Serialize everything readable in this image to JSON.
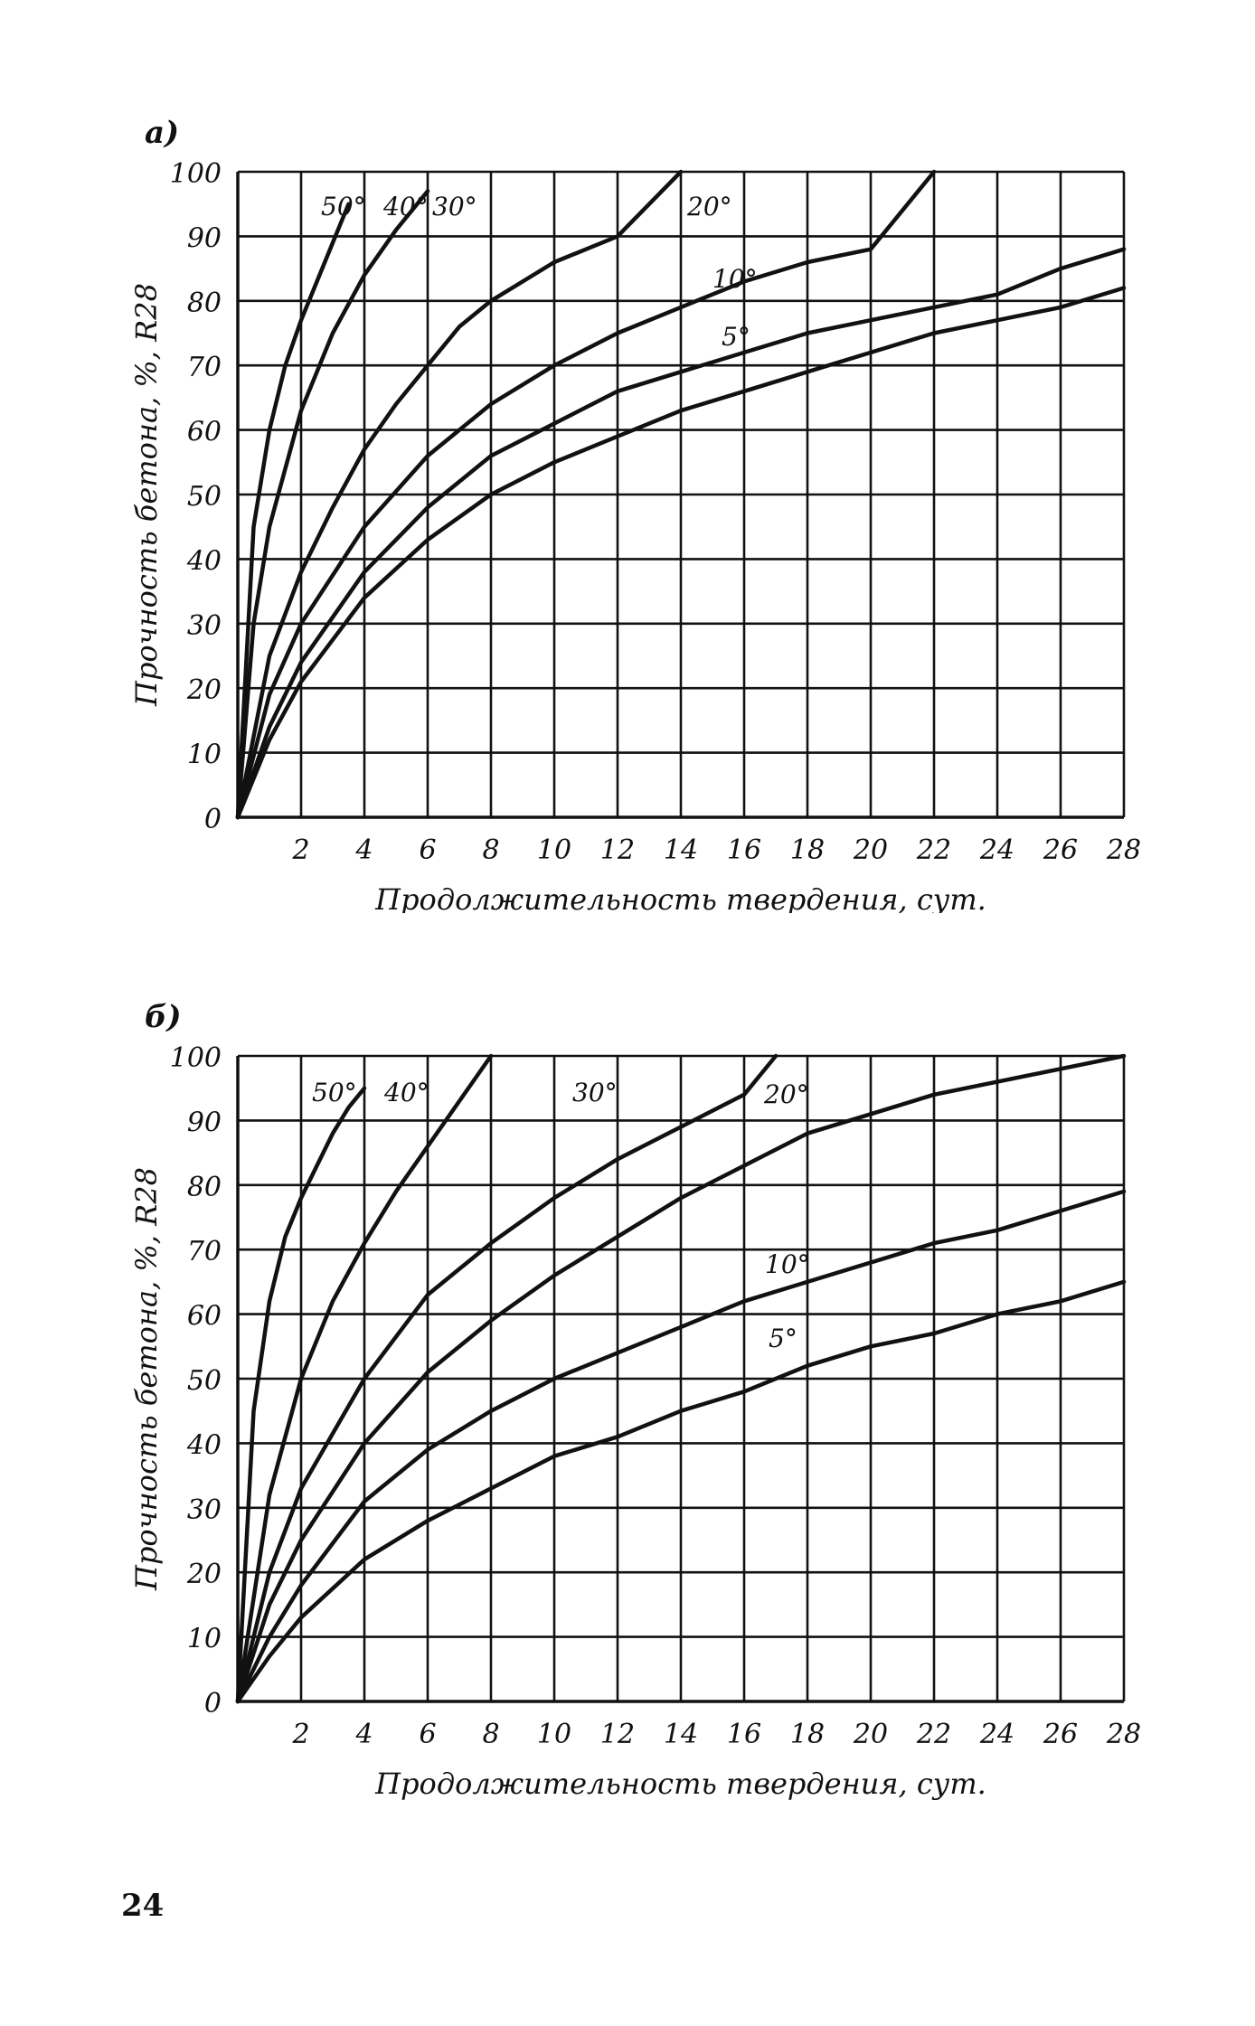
{
  "page": {
    "number": "24"
  },
  "chart_data": [
    {
      "type": "line",
      "panel_label": "а)",
      "xlabel": "Продолжительность твердения, сут.",
      "ylabel": "Прочность бетона, %, R28",
      "xlim": [
        0,
        28
      ],
      "ylim": [
        0,
        100
      ],
      "x_ticks": [
        2,
        4,
        6,
        8,
        10,
        12,
        14,
        16,
        18,
        20,
        22,
        24,
        26,
        28
      ],
      "x_tick_labels": [
        "2",
        "4",
        "6",
        "8",
        "10",
        "12",
        "14",
        "16",
        "18",
        "20",
        "22",
        "24",
        "26",
        "28"
      ],
      "y_ticks": [
        0,
        10,
        20,
        30,
        40,
        50,
        60,
        70,
        80,
        90,
        100
      ],
      "y_tick_labels": [
        "0",
        "10",
        "20",
        "30",
        "40",
        "50",
        "60",
        "70",
        "80",
        "90",
        "100"
      ],
      "grid": true,
      "series": [
        {
          "name": "50°",
          "x": [
            0,
            0.5,
            1,
            1.5,
            2,
            2.5,
            3,
            3.5
          ],
          "values": [
            0,
            45,
            60,
            70,
            77,
            83,
            89,
            95
          ]
        },
        {
          "name": "40°",
          "x": [
            0,
            0.5,
            1,
            2,
            3,
            4,
            5,
            6
          ],
          "values": [
            0,
            30,
            45,
            63,
            75,
            84,
            91,
            97
          ]
        },
        {
          "name": "30°",
          "x": [
            0,
            1,
            2,
            3,
            4,
            5,
            6,
            7,
            8,
            10,
            12,
            14
          ],
          "values": [
            0,
            25,
            38,
            48,
            57,
            64,
            70,
            76,
            80,
            86,
            90,
            100
          ]
        },
        {
          "name": "20°",
          "x": [
            0,
            1,
            2,
            4,
            6,
            8,
            10,
            12,
            14,
            16,
            18,
            20,
            22
          ],
          "values": [
            0,
            19,
            30,
            45,
            56,
            64,
            70,
            75,
            79,
            83,
            86,
            88,
            100
          ]
        },
        {
          "name": "10°",
          "x": [
            0,
            1,
            2,
            4,
            6,
            8,
            10,
            12,
            14,
            16,
            18,
            20,
            22,
            24,
            26,
            28
          ],
          "values": [
            0,
            14,
            24,
            38,
            48,
            56,
            61,
            66,
            69,
            72,
            75,
            77,
            79,
            81,
            85,
            88
          ]
        },
        {
          "name": "5°",
          "x": [
            0,
            1,
            2,
            4,
            6,
            8,
            10,
            12,
            14,
            16,
            18,
            20,
            22,
            24,
            26,
            28
          ],
          "values": [
            0,
            12,
            21,
            34,
            43,
            50,
            55,
            59,
            63,
            66,
            69,
            72,
            75,
            77,
            79,
            82
          ]
        }
      ]
    },
    {
      "type": "line",
      "panel_label": "б)",
      "xlabel": "Продолжительность твердения, сут.",
      "ylabel": "Прочность бетона, %, R28",
      "xlim": [
        0,
        28
      ],
      "ylim": [
        0,
        100
      ],
      "x_ticks": [
        2,
        4,
        6,
        8,
        10,
        12,
        14,
        16,
        18,
        20,
        22,
        24,
        26,
        28
      ],
      "x_tick_labels": [
        "2",
        "4",
        "6",
        "8",
        "10",
        "12",
        "14",
        "16",
        "18",
        "20",
        "22",
        "24",
        "26",
        "28"
      ],
      "y_ticks": [
        0,
        10,
        20,
        30,
        40,
        50,
        60,
        70,
        80,
        90,
        100
      ],
      "y_tick_labels": [
        "0",
        "10",
        "20",
        "30",
        "40",
        "50",
        "60",
        "70",
        "80",
        "90",
        "100"
      ],
      "grid": true,
      "series": [
        {
          "name": "50°",
          "x": [
            0,
            0.5,
            1,
            1.5,
            2,
            2.5,
            3,
            3.5,
            4
          ],
          "values": [
            0,
            45,
            62,
            72,
            78,
            83,
            88,
            92,
            95
          ]
        },
        {
          "name": "40°",
          "x": [
            0,
            1,
            2,
            3,
            4,
            5,
            6,
            7,
            8
          ],
          "values": [
            0,
            32,
            50,
            62,
            71,
            79,
            86,
            93,
            100
          ]
        },
        {
          "name": "30°",
          "x": [
            0,
            1,
            2,
            4,
            6,
            8,
            10,
            12,
            14,
            16,
            17
          ],
          "values": [
            0,
            20,
            33,
            50,
            63,
            71,
            78,
            84,
            89,
            94,
            100
          ]
        },
        {
          "name": "20°",
          "x": [
            0,
            1,
            2,
            4,
            6,
            8,
            10,
            12,
            14,
            16,
            18,
            20,
            22,
            24,
            26,
            28
          ],
          "values": [
            0,
            15,
            25,
            40,
            51,
            59,
            66,
            72,
            78,
            83,
            88,
            91,
            94,
            96,
            98,
            100
          ]
        },
        {
          "name": "10°",
          "x": [
            0,
            1,
            2,
            4,
            6,
            8,
            10,
            12,
            14,
            16,
            18,
            20,
            22,
            24,
            26,
            28
          ],
          "values": [
            0,
            10,
            18,
            31,
            39,
            45,
            50,
            54,
            58,
            62,
            65,
            68,
            71,
            73,
            76,
            79
          ]
        },
        {
          "name": "5°",
          "x": [
            0,
            1,
            2,
            4,
            6,
            8,
            10,
            12,
            14,
            16,
            18,
            20,
            22,
            24,
            26,
            28
          ],
          "values": [
            0,
            7,
            13,
            22,
            28,
            33,
            38,
            41,
            45,
            48,
            52,
            55,
            57,
            60,
            62,
            65
          ]
        }
      ]
    }
  ]
}
